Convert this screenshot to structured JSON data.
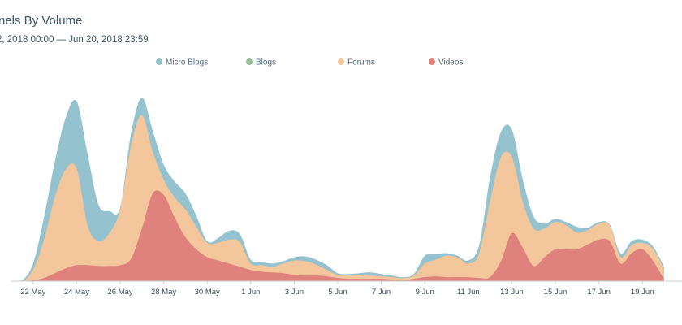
{
  "header": {
    "title": "nels By Volume",
    "date_range": "2, 2018 00:00 — Jun 20, 2018 23:59"
  },
  "chart_data": {
    "type": "area",
    "title": "nels By Volume",
    "subtitle": "2, 2018 00:00 — Jun 20, 2018 23:59",
    "stacked": true,
    "xlabel": "",
    "ylabel": "",
    "x_ticks": [
      "22 May",
      "24 May",
      "26 May",
      "28 May",
      "30 May",
      "1 Jun",
      "3 Jun",
      "5 Jun",
      "7 Jun",
      "9 Jun",
      "11 Jun",
      "13 Jun",
      "15 Jun",
      "17 Jun",
      "19 Jun"
    ],
    "x": [
      "21 May",
      "21.5 May",
      "22 May",
      "22.5 May",
      "23 May",
      "23.5 May",
      "24 May",
      "24.5 May",
      "25 May",
      "25.5 May",
      "26 May",
      "26.5 May",
      "27 May",
      "27.5 May",
      "28 May",
      "28.5 May",
      "29 May",
      "29.5 May",
      "30 May",
      "30.5 May",
      "31 May",
      "31.5 May",
      "1 Jun",
      "1.5 Jun",
      "2 Jun",
      "2.5 Jun",
      "3 Jun",
      "3.5 Jun",
      "4 Jun",
      "4.5 Jun",
      "5 Jun",
      "5.5 Jun",
      "6 Jun",
      "6.5 Jun",
      "7 Jun",
      "7.5 Jun",
      "8 Jun",
      "8.5 Jun",
      "9 Jun",
      "9.5 Jun",
      "10 Jun",
      "10.5 Jun",
      "11 Jun",
      "11.5 Jun",
      "12 Jun",
      "12.5 Jun",
      "13 Jun",
      "13.5 Jun",
      "14 Jun",
      "14.5 Jun",
      "15 Jun",
      "15.5 Jun",
      "16 Jun",
      "16.5 Jun",
      "17 Jun",
      "17.5 Jun",
      "18 Jun",
      "18.5 Jun",
      "19 Jun",
      "19.5 Jun",
      "20 Jun"
    ],
    "ylim": [
      0,
      230
    ],
    "grid": false,
    "legend_position": "top",
    "series": [
      {
        "name": "Videos",
        "color": "#e0827c",
        "values": [
          0,
          0,
          1,
          4,
          10,
          16,
          20,
          20,
          19,
          19,
          20,
          28,
          66,
          110,
          108,
          80,
          55,
          40,
          30,
          26,
          22,
          18,
          14,
          12,
          11,
          10,
          8,
          7,
          7,
          6,
          4,
          3,
          3,
          3,
          3,
          2,
          1,
          3,
          5,
          6,
          5,
          5,
          5,
          4,
          5,
          25,
          60,
          42,
          19,
          30,
          40,
          40,
          40,
          46,
          52,
          50,
          22,
          35,
          40,
          25,
          2
        ]
      },
      {
        "name": "Forums",
        "color": "#f3c79b",
        "values": [
          0,
          0,
          14,
          52,
          105,
          140,
          141,
          70,
          50,
          60,
          90,
          170,
          208,
          162,
          127,
          105,
          90,
          68,
          48,
          48,
          52,
          49,
          22,
          20,
          18,
          22,
          26,
          25,
          21,
          14,
          8,
          7,
          8,
          7,
          6,
          5,
          4,
          7,
          22,
          27,
          32,
          30,
          22,
          35,
          100,
          155,
          156,
          100,
          66,
          66,
          74,
          70,
          61,
          64,
          72,
          70,
          30,
          45,
          48,
          40,
          15
        ]
      },
      {
        "name": "Blogs",
        "color": "#95bd98",
        "values": [
          0,
          0,
          14,
          52,
          105,
          140,
          141,
          70,
          50,
          60,
          90,
          170,
          208,
          162,
          127,
          105,
          90,
          68,
          48,
          48,
          52,
          49,
          22,
          20,
          18,
          22,
          26,
          25,
          21,
          14,
          8,
          7,
          8,
          7,
          6,
          5,
          4,
          7,
          22,
          27,
          32,
          30,
          22,
          35,
          100,
          155,
          156,
          100,
          66,
          66,
          74,
          70,
          61,
          64,
          72,
          70,
          30,
          45,
          48,
          40,
          15
        ]
      },
      {
        "name": "Micro Blogs",
        "color": "#94c3cf",
        "values": [
          0,
          1,
          22,
          80,
          150,
          205,
          225,
          160,
          96,
          88,
          92,
          185,
          230,
          188,
          146,
          125,
          110,
          82,
          50,
          54,
          63,
          59,
          27,
          24,
          22,
          25,
          30,
          31,
          27,
          20,
          10,
          9,
          10,
          11,
          9,
          7,
          5,
          9,
          32,
          34,
          35,
          32,
          26,
          45,
          130,
          187,
          190,
          128,
          81,
          72,
          78,
          74,
          68,
          67,
          74,
          71,
          35,
          50,
          52,
          43,
          18
        ]
      }
    ]
  }
}
